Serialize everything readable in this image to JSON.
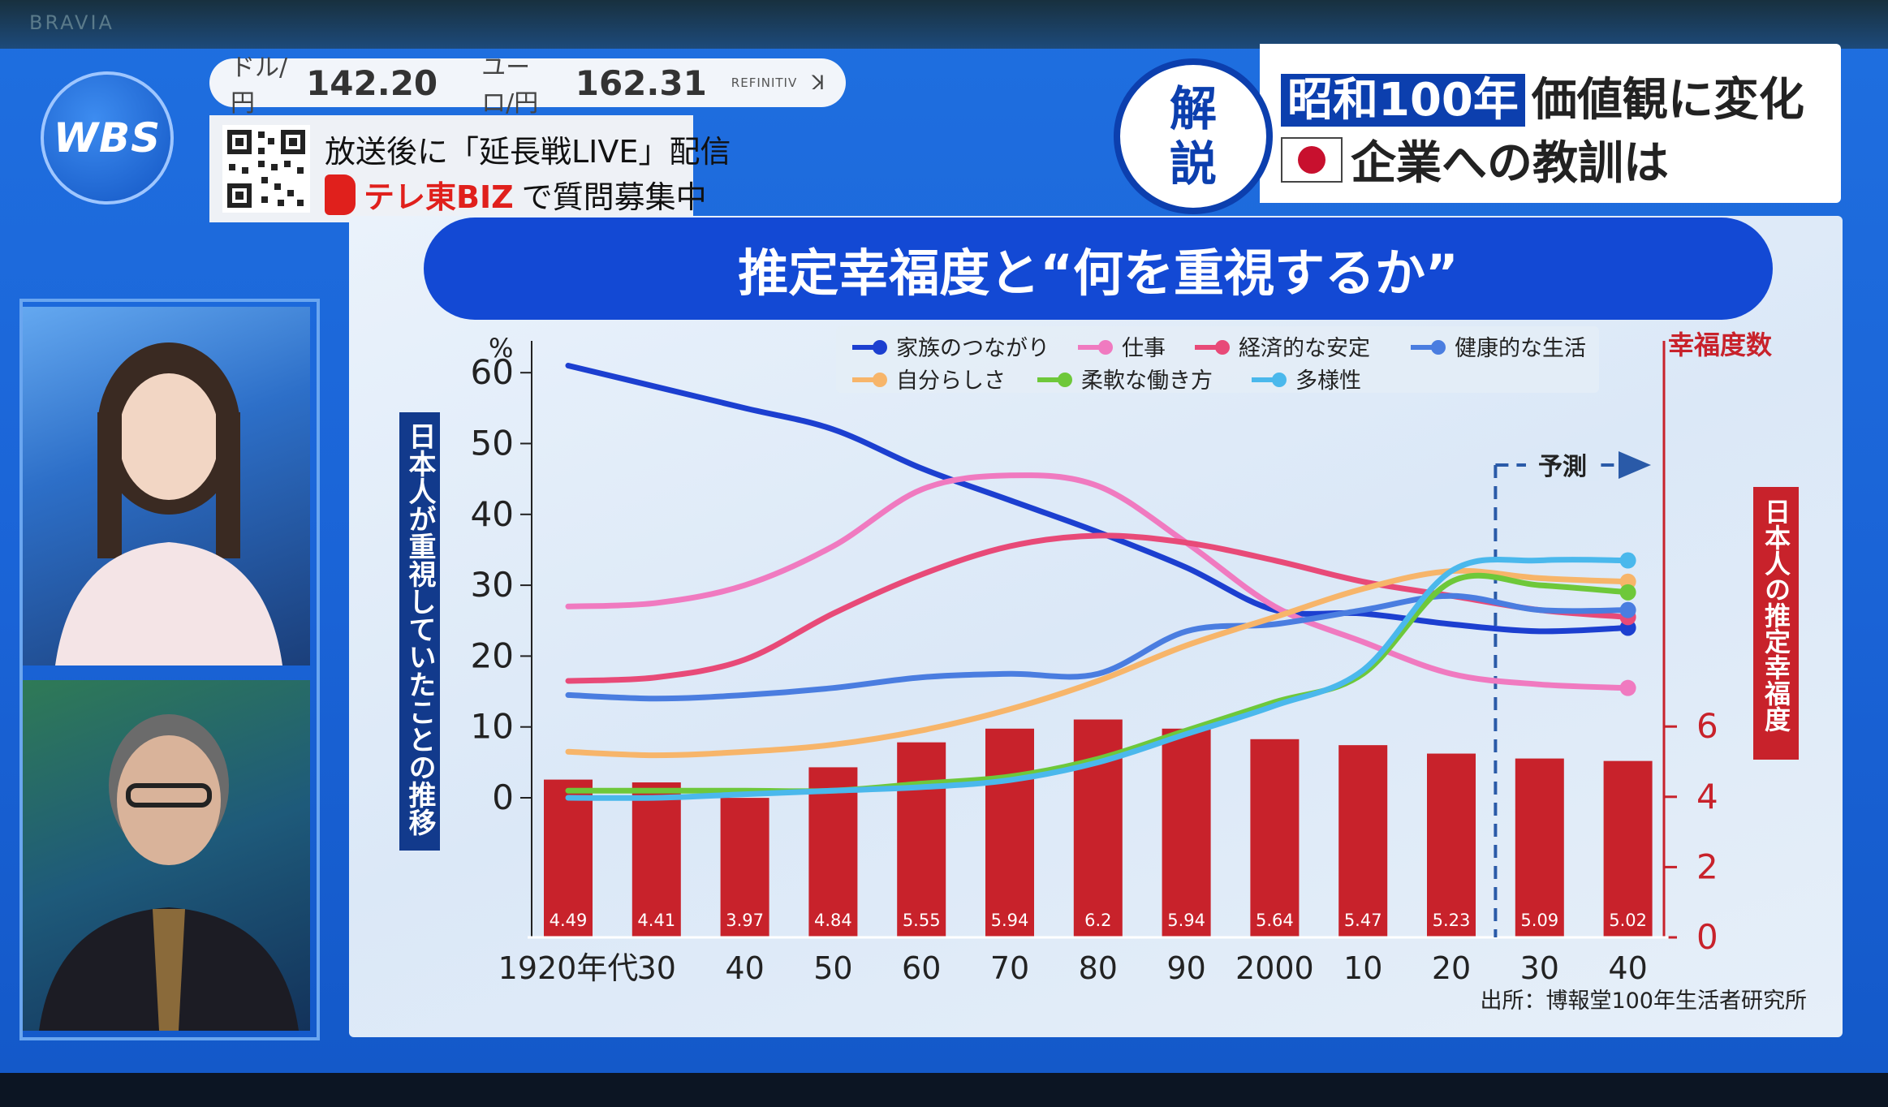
{
  "broadcast": {
    "brand": "BRAVIA",
    "logo_text": "WBS"
  },
  "ticker": {
    "items": [
      {
        "label": "ドル/円",
        "value": "142.20"
      },
      {
        "label": "ユーロ/円",
        "value": "162.31"
      }
    ],
    "source": "REFINITIV",
    "source_mark": "ꓘ"
  },
  "promo": {
    "line1": "放送後に「延長戦LIVE」配信",
    "biz_name": "テレ東BIZ",
    "line2_suffix": "で質問募集中"
  },
  "headline": {
    "badge_top": "解",
    "badge_bottom": "説",
    "line1_highlight": "昭和100年",
    "line1_rest": "価値観に変化",
    "line2": "企業への教訓は"
  },
  "colors": {
    "accent_blue": "#1349d4",
    "bar_red": "#c8222b"
  },
  "chart_data": {
    "type": "line",
    "title": "推定幸福度と“何を重視するか”",
    "x_tick_labels": [
      "1920年代",
      "30",
      "40",
      "50",
      "60",
      "70",
      "80",
      "90",
      "2000",
      "10",
      "20",
      "30",
      "40"
    ],
    "x": [
      1920,
      1930,
      1940,
      1950,
      1960,
      1970,
      1980,
      1990,
      2000,
      2010,
      2020,
      2030,
      2040
    ],
    "ylabel_left": "日本人が重視していたことの推移",
    "y_unit_left": "%",
    "ylim_left": [
      0,
      60
    ],
    "yticks_left": [
      0,
      10,
      20,
      30,
      40,
      50,
      60
    ],
    "ylabel_right_title": "幸福度数",
    "ylabel_right": "日本人の推定幸福度",
    "ylim_right": [
      0,
      6
    ],
    "yticks_right": [
      0,
      2,
      4,
      6
    ],
    "forecast_label": "予測",
    "forecast_start": 2025,
    "source": "出所：博報堂100年生活者研究所",
    "series": [
      {
        "name": "家族のつながり",
        "color": "#1c3fd0",
        "values": [
          61,
          58,
          55,
          52,
          46.5,
          42,
          37.5,
          32.5,
          26.5,
          26,
          24.5,
          23.5,
          24
        ]
      },
      {
        "name": "仕事",
        "color": "#f07ac0",
        "values": [
          27,
          27.5,
          30,
          35.5,
          43.5,
          45.5,
          44,
          36,
          27,
          22,
          17.5,
          16,
          15.5
        ]
      },
      {
        "name": "経済的な安定",
        "color": "#e84a78",
        "values": [
          16.5,
          17,
          19.5,
          26,
          31.5,
          35.5,
          37,
          36,
          33.5,
          30.5,
          28.5,
          26.5,
          25.5
        ]
      },
      {
        "name": "健康的な生活",
        "color": "#4a7de0",
        "values": [
          14.5,
          14,
          14.5,
          15.5,
          17,
          17.5,
          17.5,
          23.5,
          24.5,
          26.5,
          28.5,
          26.5,
          26.5
        ]
      },
      {
        "name": "自分らしさ",
        "color": "#f7b56a",
        "values": [
          6.5,
          6,
          6.5,
          7.5,
          9.5,
          12.5,
          16.5,
          21.5,
          25.5,
          29.5,
          32,
          31,
          30.5
        ]
      },
      {
        "name": "柔軟な働き方",
        "color": "#6ec83a",
        "values": [
          1,
          1,
          1,
          1,
          2,
          3,
          5.5,
          9.5,
          13.5,
          17.5,
          30.5,
          30,
          29
        ]
      },
      {
        "name": "多様性",
        "color": "#4ab8ec",
        "values": [
          0,
          0,
          0.5,
          1,
          1.5,
          2.5,
          5,
          9,
          13,
          18,
          32,
          33.5,
          33.5
        ]
      }
    ],
    "bar_series": {
      "name": "日本人の推定幸福度",
      "color": "#c8222b",
      "values": [
        4.49,
        4.41,
        3.97,
        4.84,
        5.55,
        5.94,
        6.2,
        5.94,
        5.64,
        5.47,
        5.23,
        5.09,
        5.02
      ],
      "labels": [
        "4.49",
        "4.41",
        "3.97",
        "4.84",
        "5.55",
        "5.94",
        "6.2",
        "5.94",
        "5.64",
        "5.47",
        "5.23",
        "5.09",
        "5.02"
      ]
    },
    "legend_placement": "top",
    "grid": false
  }
}
